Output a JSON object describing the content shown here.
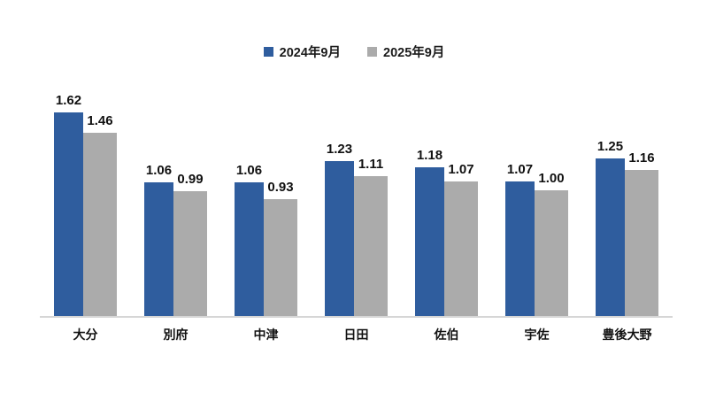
{
  "chart_data": {
    "type": "bar",
    "title": "",
    "categories": [
      "大分",
      "別府",
      "中津",
      "日田",
      "佐伯",
      "宇佐",
      "豊後大野"
    ],
    "series": [
      {
        "name": "2024年9月",
        "color": "#2F5D9E",
        "values": [
          1.62,
          1.06,
          1.06,
          1.23,
          1.18,
          1.07,
          1.25
        ]
      },
      {
        "name": "2025年9月",
        "color": "#ABABAB",
        "values": [
          1.46,
          0.99,
          0.93,
          1.11,
          1.07,
          1.0,
          1.16
        ]
      }
    ],
    "value_labels_shown": true,
    "value_label_decimals": 2,
    "xlabel": "",
    "ylabel": "",
    "ylim": [
      0,
      1.75
    ],
    "grid": false,
    "y_axis_shown": false,
    "legend_position": "top-center",
    "axis_line_color": "#D6D6D6",
    "text_color": "#111111",
    "background": "#FFFFFF"
  }
}
